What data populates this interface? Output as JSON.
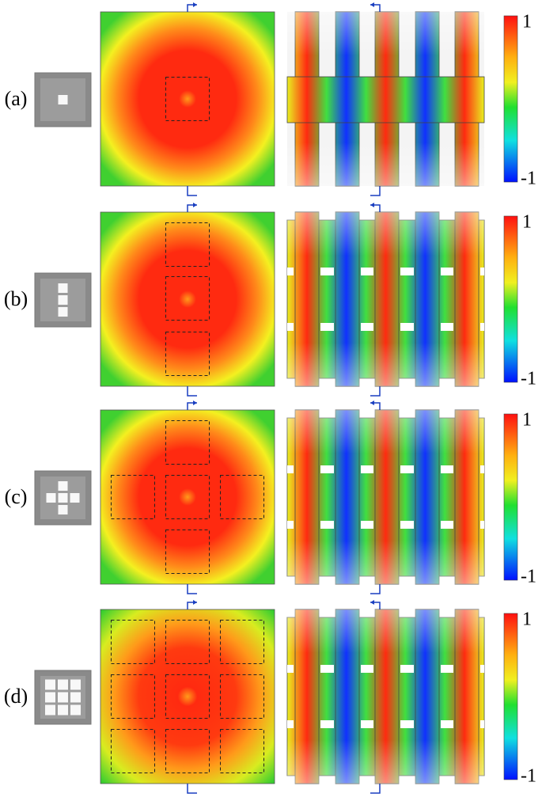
{
  "rows": [
    {
      "label": "(a)",
      "colorbar_max": "1",
      "colorbar_min": "-1"
    },
    {
      "label": "(b)",
      "colorbar_max": "1",
      "colorbar_min": "-1"
    },
    {
      "label": "(c)",
      "colorbar_max": "1",
      "colorbar_min": "-1"
    },
    {
      "label": "(d)",
      "colorbar_max": "1",
      "colorbar_min": "-1"
    }
  ]
}
